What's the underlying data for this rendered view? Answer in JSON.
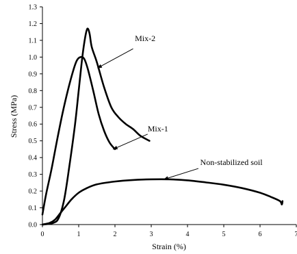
{
  "chart_data": {
    "type": "line",
    "xlabel": "Strain (%)",
    "ylabel": "Stress (MPa)",
    "xlim": [
      0,
      7
    ],
    "ylim": [
      0,
      1.3
    ],
    "x_ticks": [
      0,
      1,
      2,
      3,
      4,
      5,
      6,
      7
    ],
    "x_tick_labels": [
      "0",
      "1",
      "2",
      "3",
      "4",
      "5",
      "6",
      "7"
    ],
    "y_ticks": [
      0,
      0.1,
      0.2,
      0.3,
      0.4,
      0.5,
      0.6,
      0.7,
      0.8,
      0.9,
      1.0,
      1.1,
      1.2,
      1.3
    ],
    "y_tick_labels": [
      "0.0",
      "0.1",
      "0.2",
      "0.3",
      "0.4",
      "0.5",
      "0.6",
      "0.7",
      "0.8",
      "0.9",
      "1.0",
      "1.1",
      "1.2",
      "1.3"
    ],
    "grid": false,
    "series": [
      {
        "name": "Mix-1",
        "points": [
          [
            0,
            0.06
          ],
          [
            0.1,
            0.18
          ],
          [
            0.25,
            0.33
          ],
          [
            0.4,
            0.5
          ],
          [
            0.55,
            0.66
          ],
          [
            0.7,
            0.8
          ],
          [
            0.85,
            0.92
          ],
          [
            0.95,
            0.98
          ],
          [
            1.05,
            1.0
          ],
          [
            1.15,
            0.99
          ],
          [
            1.25,
            0.93
          ],
          [
            1.4,
            0.8
          ],
          [
            1.55,
            0.66
          ],
          [
            1.7,
            0.56
          ],
          [
            1.85,
            0.49
          ],
          [
            2.0,
            0.45
          ]
        ]
      },
      {
        "name": "Mix-2",
        "points": [
          [
            0,
            0
          ],
          [
            0.3,
            0.01
          ],
          [
            0.45,
            0.04
          ],
          [
            0.6,
            0.15
          ],
          [
            0.75,
            0.36
          ],
          [
            0.9,
            0.6
          ],
          [
            1.0,
            0.8
          ],
          [
            1.1,
            1.0
          ],
          [
            1.18,
            1.12
          ],
          [
            1.24,
            1.17
          ],
          [
            1.3,
            1.14
          ],
          [
            1.36,
            1.06
          ],
          [
            1.5,
            0.97
          ],
          [
            1.7,
            0.82
          ],
          [
            1.9,
            0.7
          ],
          [
            2.1,
            0.64
          ],
          [
            2.3,
            0.6
          ],
          [
            2.5,
            0.57
          ],
          [
            2.7,
            0.53
          ],
          [
            2.95,
            0.5
          ]
        ]
      },
      {
        "name": "Non-stabilized soil",
        "points": [
          [
            0,
            0
          ],
          [
            0.2,
            0.01
          ],
          [
            0.35,
            0.03
          ],
          [
            0.5,
            0.07
          ],
          [
            0.65,
            0.11
          ],
          [
            0.8,
            0.15
          ],
          [
            1.0,
            0.19
          ],
          [
            1.2,
            0.215
          ],
          [
            1.5,
            0.24
          ],
          [
            2.0,
            0.257
          ],
          [
            2.5,
            0.266
          ],
          [
            3.0,
            0.27
          ],
          [
            3.5,
            0.27
          ],
          [
            4.0,
            0.264
          ],
          [
            4.5,
            0.252
          ],
          [
            5.0,
            0.238
          ],
          [
            5.5,
            0.218
          ],
          [
            6.0,
            0.19
          ],
          [
            6.3,
            0.165
          ],
          [
            6.55,
            0.14
          ],
          [
            6.6,
            0.12
          ],
          [
            6.62,
            0.14
          ]
        ]
      }
    ],
    "annotations": [
      {
        "text": "Mix-2",
        "label_at": [
          2.55,
          1.095
        ],
        "arrow_from": [
          2.5,
          1.05
        ],
        "arrow_to": [
          1.52,
          0.935
        ]
      },
      {
        "text": "Mix-1",
        "label_at": [
          2.9,
          0.555
        ],
        "arrow_from": [
          2.9,
          0.54
        ],
        "arrow_to": [
          1.95,
          0.45
        ]
      },
      {
        "text": "Non-stabilized soil",
        "label_at": [
          4.35,
          0.355
        ],
        "arrow_from": [
          4.3,
          0.335
        ],
        "arrow_to": [
          3.35,
          0.27
        ]
      }
    ]
  }
}
